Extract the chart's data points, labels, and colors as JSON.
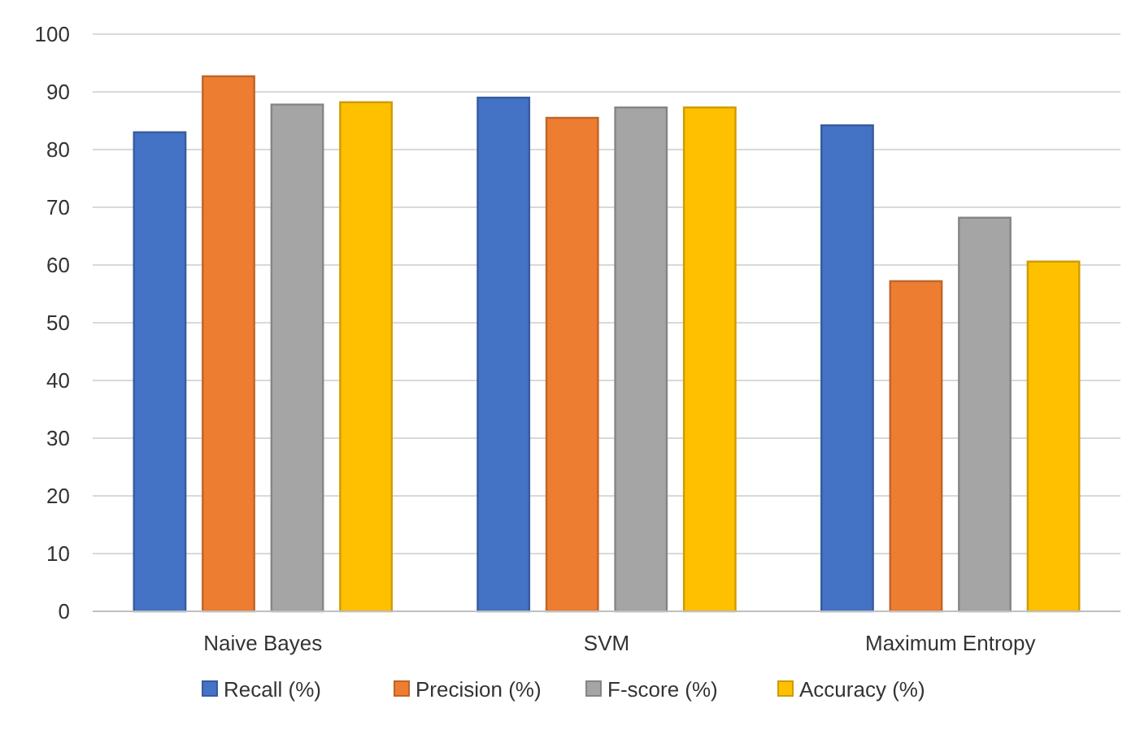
{
  "chart_data": {
    "type": "bar",
    "categories": [
      "Naive Bayes",
      "SVM",
      "Maximum Entropy"
    ],
    "series": [
      {
        "name": "Recall (%)",
        "color": "#4472c4",
        "values": [
          83,
          89,
          84.2
        ]
      },
      {
        "name": "Precision (%)",
        "color": "#ed7d31",
        "values": [
          92.7,
          85.5,
          57.2
        ]
      },
      {
        "name": "F-score (%)",
        "color": "#a5a5a5",
        "values": [
          87.8,
          87.3,
          68.2
        ]
      },
      {
        "name": "Accuracy (%)",
        "color": "#ffc000",
        "values": [
          88.2,
          87.3,
          60.6
        ]
      }
    ],
    "ylim": [
      0,
      100
    ],
    "yticks": [
      0,
      10,
      20,
      30,
      40,
      50,
      60,
      70,
      80,
      90,
      100
    ],
    "grid": "y",
    "legend": "bottom"
  }
}
